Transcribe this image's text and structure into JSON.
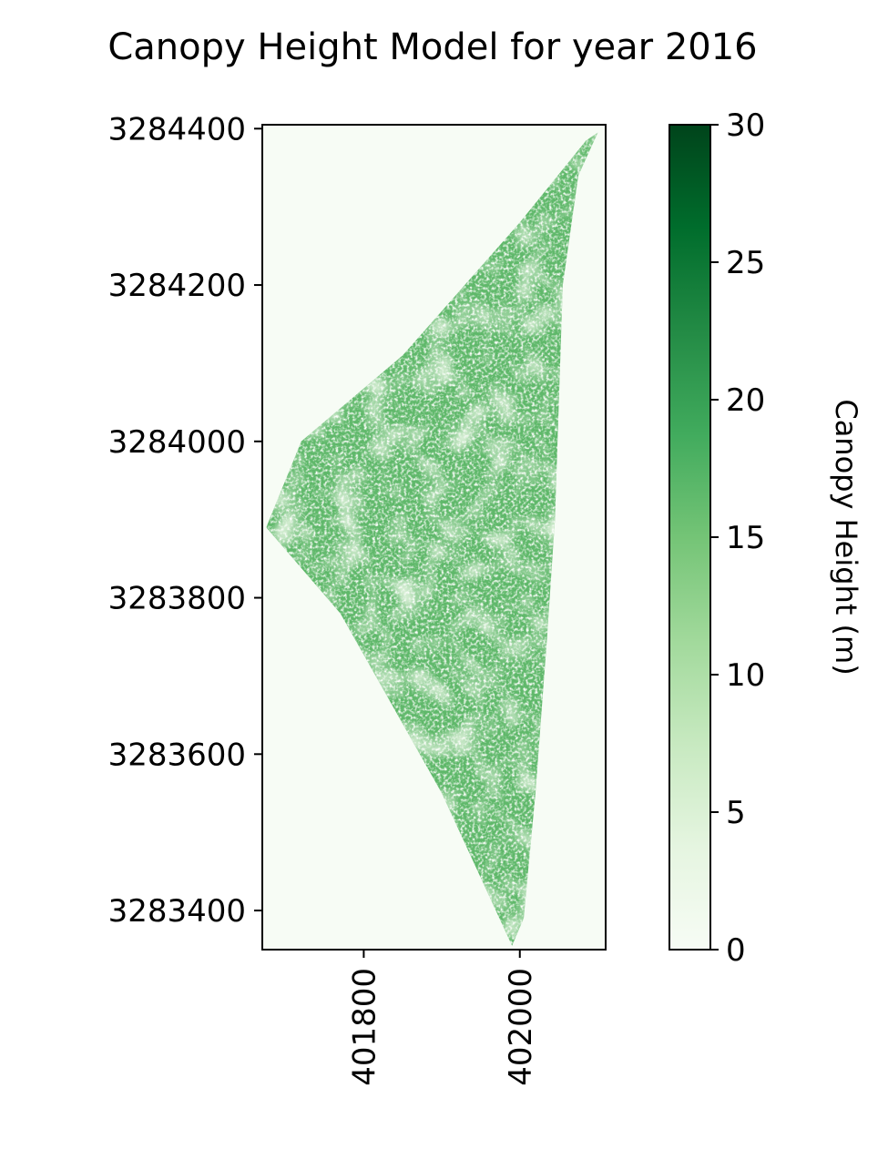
{
  "chart_data": {
    "type": "heatmap",
    "title": "Canopy Height Model for year 2016",
    "xlabel": "",
    "ylabel": "",
    "x_ticks": [
      401800,
      402000
    ],
    "x_tick_labels": [
      "401800",
      "402000"
    ],
    "y_ticks": [
      3283400,
      3283600,
      3283800,
      3284000,
      3284200,
      3284400
    ],
    "y_tick_labels": [
      "3283400",
      "3283600",
      "3283800",
      "3284000",
      "3284200",
      "3284400"
    ],
    "xlim": [
      401670,
      402110
    ],
    "ylim": [
      3283350,
      3284405
    ],
    "colorbar": {
      "label": "Canopy Height (m)",
      "range": [
        0,
        30
      ],
      "ticks": [
        0,
        5,
        10,
        15,
        20,
        25,
        30
      ],
      "tick_labels": [
        "0",
        "5",
        "10",
        "15",
        "20",
        "25",
        "30"
      ],
      "colormap": "Greens"
    },
    "raster_outline": [
      [
        402100,
        3284395
      ],
      [
        402075,
        3284340
      ],
      [
        402055,
        3284200
      ],
      [
        402050,
        3284050
      ],
      [
        402045,
        3283900
      ],
      [
        402035,
        3283750
      ],
      [
        402020,
        3283550
      ],
      [
        402005,
        3283390
      ],
      [
        401990,
        3283355
      ],
      [
        401900,
        3283550
      ],
      [
        401770,
        3283780
      ],
      [
        401675,
        3283890
      ],
      [
        401720,
        3284000
      ],
      [
        401850,
        3284110
      ],
      [
        402000,
        3284280
      ],
      [
        402085,
        3284385
      ]
    ],
    "colors": {
      "no_data": "#f7fcf5",
      "low": "#c7e9c0",
      "mid": "#74c476",
      "high": "#238b45"
    }
  }
}
